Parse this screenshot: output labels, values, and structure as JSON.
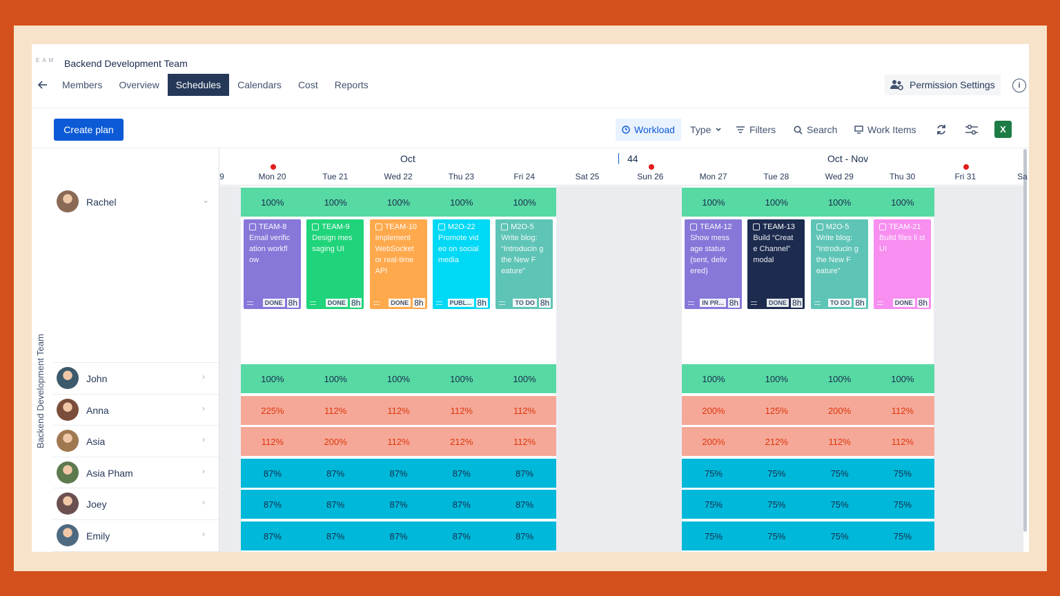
{
  "header": {
    "team_tag": "EAM",
    "team_title": "Backend Development Team",
    "tabs": [
      "Members",
      "Overview",
      "Schedules",
      "Calendars",
      "Cost",
      "Reports"
    ],
    "active_tab": "Schedules",
    "permission_label": "Permission Settings"
  },
  "toolbar": {
    "create_label": "Create plan",
    "workload_label": "Workload",
    "type_label": "Type",
    "filters_label": "Filters",
    "search_label": "Search",
    "work_items_label": "Work Items",
    "excel_label": "X"
  },
  "timeline": {
    "months": [
      {
        "label": "Oct"
      },
      {
        "label": "44"
      },
      {
        "label": "Oct - Nov"
      }
    ],
    "days": [
      "9",
      "Mon  20",
      "Tue  21",
      "Wed  22",
      "Thu  23",
      "Fri  24",
      "Sat  25",
      "Sun  26",
      "Mon  27",
      "Tue  28",
      "Wed  29",
      "Thu  30",
      "Fri  31",
      "Sa"
    ]
  },
  "group_label": "Backend Development Team",
  "members": [
    {
      "name": "Rachel",
      "workload": [
        "100%",
        "100%",
        "100%",
        "100%",
        "100%",
        "100%",
        "100%",
        "100%",
        "100%"
      ],
      "tone": "g"
    },
    {
      "name": "John",
      "workload": [
        "100%",
        "100%",
        "100%",
        "100%",
        "100%",
        "100%",
        "100%",
        "100%",
        "100%"
      ],
      "tone": "g"
    },
    {
      "name": "Anna",
      "workload": [
        "225%",
        "112%",
        "112%",
        "112%",
        "112%",
        "200%",
        "125%",
        "200%",
        "112%"
      ],
      "tone": "r"
    },
    {
      "name": "Asia",
      "workload": [
        "112%",
        "200%",
        "112%",
        "212%",
        "112%",
        "200%",
        "212%",
        "112%",
        "112%"
      ],
      "tone": "r"
    },
    {
      "name": "Asia Pham",
      "workload": [
        "87%",
        "87%",
        "87%",
        "87%",
        "87%",
        "75%",
        "75%",
        "75%",
        "75%"
      ],
      "tone": "b"
    },
    {
      "name": "Joey",
      "workload": [
        "87%",
        "87%",
        "87%",
        "87%",
        "87%",
        "75%",
        "75%",
        "75%",
        "75%"
      ],
      "tone": "b"
    },
    {
      "name": "Emily",
      "workload": [
        "87%",
        "87%",
        "87%",
        "87%",
        "87%",
        "75%",
        "75%",
        "75%",
        "75%"
      ],
      "tone": "b"
    }
  ],
  "cards": [
    {
      "key": "TEAM-8",
      "title": "Email verific ation workfl ow",
      "status": "DONE",
      "hours": "8h",
      "color": "#8777d9"
    },
    {
      "key": "TEAM-9",
      "title": "Design mes saging UI",
      "status": "DONE",
      "hours": "8h",
      "color": "#1fd47a"
    },
    {
      "key": "TEAM-10",
      "title": "Implement WebSocket or real-time API",
      "status": "DONE",
      "hours": "8h",
      "color": "#ffa94d"
    },
    {
      "key": "M2O-22",
      "title": "Promote vid eo on social media",
      "status": "PUBL...",
      "hours": "8h",
      "color": "#00d9f5"
    },
    {
      "key": "M2O-5",
      "title": "Write blog: “Introducin g the New F eature”",
      "status": "TO DO",
      "hours": "8h",
      "color": "#5ec4b6"
    },
    {
      "key": "TEAM-12",
      "title": "Show mess age status (sent, deliv ered)",
      "status": "IN PR...",
      "hours": "8h",
      "color": "#8777d9"
    },
    {
      "key": "TEAM-13",
      "title": "Build “Creat e Channel” modal",
      "status": "DONE",
      "hours": "8h",
      "color": "#1d2b4f"
    },
    {
      "key": "M2O-5",
      "title": "Write blog: “Introducin g the New F eature”",
      "status": "TO DO",
      "hours": "8h",
      "color": "#5ec4b6"
    },
    {
      "key": "TEAM-21",
      "title": "Build files li st UI",
      "status": "DONE",
      "hours": "8h",
      "color": "#f78ef0"
    }
  ]
}
